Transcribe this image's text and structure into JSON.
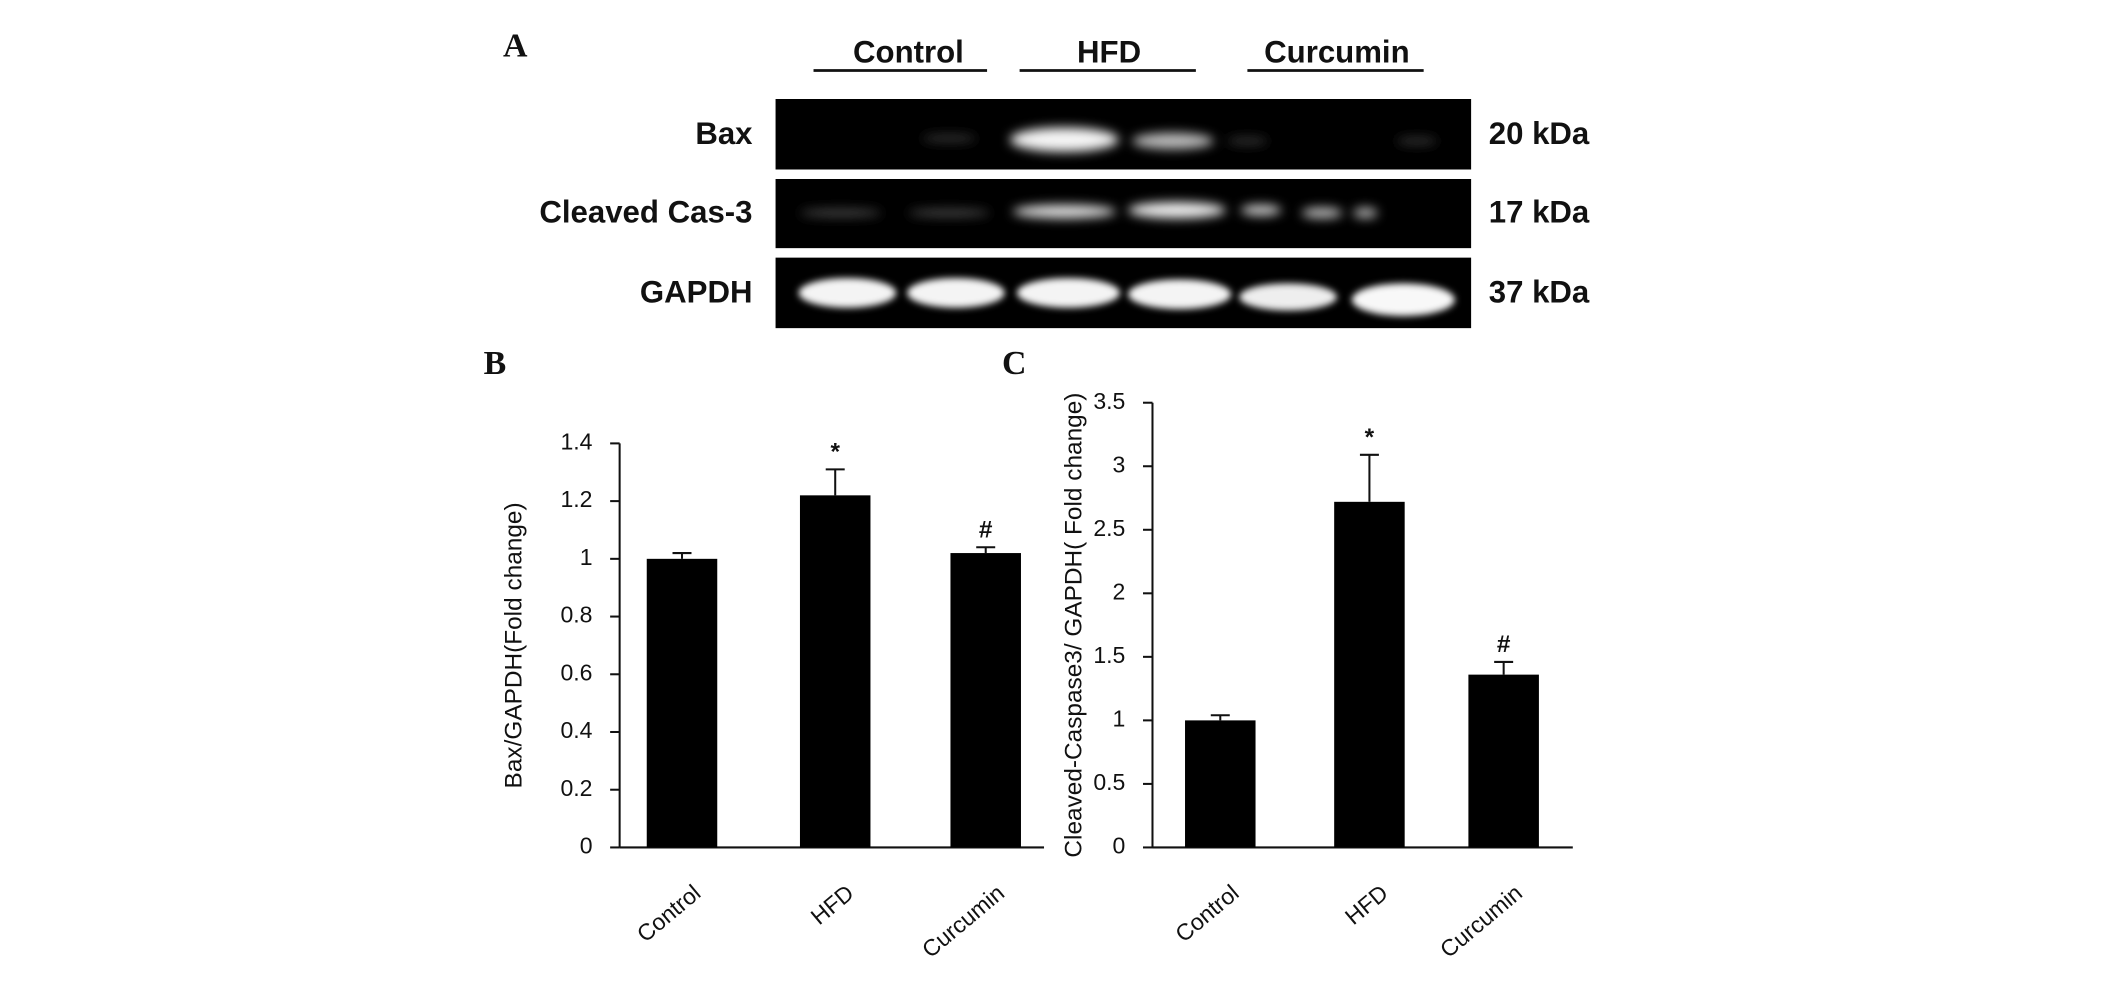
{
  "blot": {
    "panel": "A",
    "groups": [
      "Control",
      "HFD",
      "Curcumin"
    ],
    "rows": [
      {
        "name": "Bax",
        "size": "20 kDa"
      },
      {
        "name": "Cleaved Cas-3",
        "size": "17 kDa"
      },
      {
        "name": "GAPDH",
        "size": "37 kDa"
      }
    ]
  },
  "chart_data": [
    {
      "type": "bar",
      "panel": "B",
      "ylabel": "Bax/GAPDH(Fold change)",
      "categories": [
        "Control",
        "HFD",
        "Curcumin"
      ],
      "values": [
        1.0,
        1.22,
        1.02
      ],
      "errors": [
        0.02,
        0.09,
        0.02
      ],
      "markers": [
        null,
        "*",
        "#"
      ],
      "color": "#000000",
      "ylim": [
        0,
        1.4
      ],
      "yticks": [
        0,
        0.2,
        0.4,
        0.6,
        0.8,
        1,
        1.2,
        1.4
      ],
      "grid": false
    },
    {
      "type": "bar",
      "panel": "C",
      "ylabel": "Cleaved-Caspase3/ GAPDH( Fold change)",
      "categories": [
        "Control",
        "HFD",
        "Curcumin"
      ],
      "values": [
        1.0,
        2.72,
        1.36
      ],
      "errors": [
        0.04,
        0.37,
        0.1
      ],
      "markers": [
        null,
        "*",
        "#"
      ],
      "color": "#000000",
      "ylim": [
        0,
        3.5
      ],
      "yticks": [
        0,
        0.5,
        1,
        1.5,
        2,
        2.5,
        3,
        3.5
      ],
      "grid": false
    }
  ]
}
